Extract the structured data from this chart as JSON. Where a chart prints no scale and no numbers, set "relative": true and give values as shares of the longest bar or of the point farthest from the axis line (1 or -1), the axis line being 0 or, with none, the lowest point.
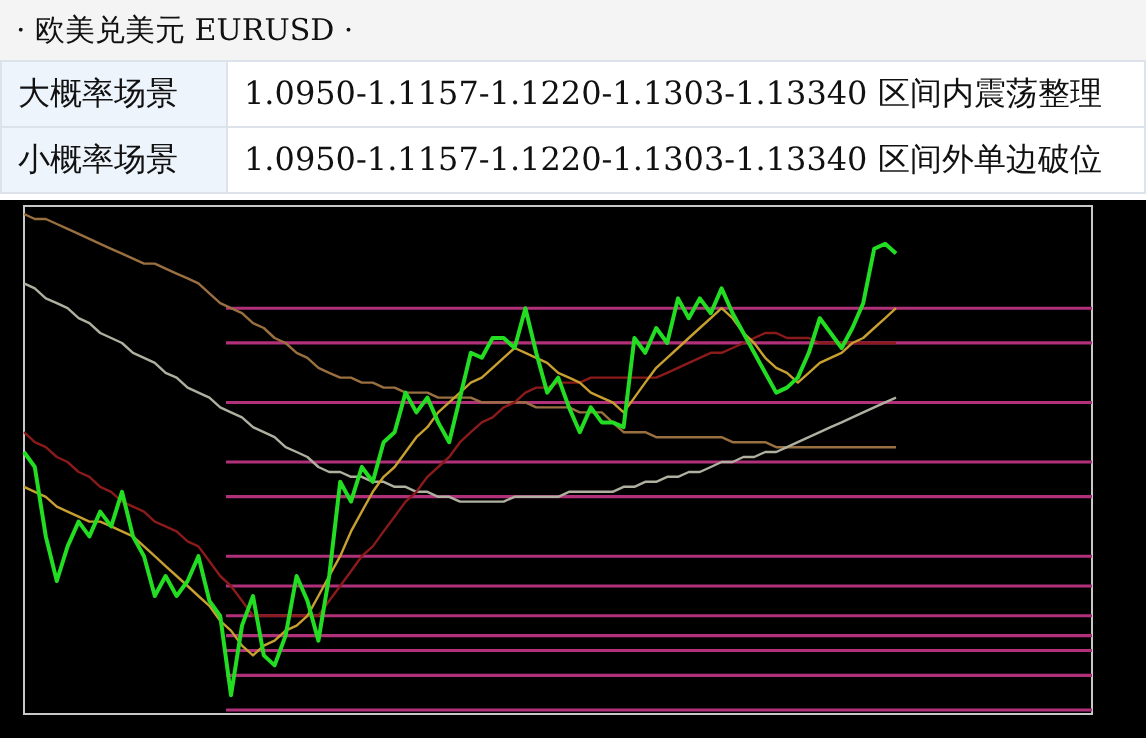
{
  "chart_data": {
    "type": "line",
    "relative": true,
    "title": "· 欧美兑美元  EURUSD ·",
    "annotations": [
      "大概率场景",
      "1.0950-1.1157-1.1220-1.1303-1.13340 区间内震荡整理",
      "小概率场景",
      "1.0950-1.1157-1.1220-1.1303-1.13340 区间外单边破位"
    ],
    "categories": [
      null,
      null,
      null,
      null,
      null,
      null,
      null,
      null,
      null,
      null,
      null,
      null,
      null,
      null,
      null,
      null,
      null,
      null,
      null,
      null,
      null,
      null,
      null,
      null,
      null,
      null,
      null,
      null,
      null,
      null,
      null,
      null,
      null,
      null,
      null,
      null,
      null,
      null,
      null,
      null,
      null,
      null,
      null,
      null,
      null,
      null,
      null,
      null,
      null,
      null,
      null,
      null,
      null,
      null,
      null,
      null,
      null,
      null,
      null,
      null,
      null,
      null,
      null,
      null,
      null,
      null,
      null,
      null,
      null,
      null,
      null,
      null,
      null,
      null,
      null,
      null,
      null,
      null,
      null,
      null,
      null
    ],
    "series": [
      {
        "color": "#22dd22",
        "values": [
          0.52,
          0.49,
          0.35,
          0.26,
          0.33,
          0.38,
          0.35,
          0.4,
          0.37,
          0.44,
          0.35,
          0.31,
          0.23,
          0.27,
          0.23,
          0.26,
          0.31,
          0.22,
          0.19,
          0.03,
          0.17,
          0.23,
          0.11,
          0.09,
          0.15,
          0.27,
          0.22,
          0.14,
          0.27,
          0.46,
          0.42,
          0.49,
          0.46,
          0.54,
          0.56,
          0.64,
          0.6,
          0.63,
          0.58,
          0.54,
          0.63,
          0.72,
          0.71,
          0.75,
          0.75,
          0.73,
          0.81,
          0.72,
          0.64,
          0.67,
          0.61,
          0.56,
          0.61,
          0.58,
          0.58,
          0.57,
          0.75,
          0.72,
          0.77,
          0.74,
          0.83,
          0.79,
          0.83,
          0.8,
          0.85,
          0.8,
          0.76,
          0.72,
          0.68,
          0.64,
          0.65,
          0.67,
          0.72,
          0.79,
          0.76,
          0.73,
          0.77,
          0.82,
          0.93,
          0.94,
          0.92
        ]
      },
      {
        "color": "#9a7040",
        "values": [
          1.0,
          0.99,
          0.99,
          0.98,
          0.97,
          0.96,
          0.95,
          0.94,
          0.93,
          0.92,
          0.91,
          0.9,
          0.9,
          0.89,
          0.88,
          0.87,
          0.86,
          0.84,
          0.82,
          0.81,
          0.8,
          0.78,
          0.77,
          0.75,
          0.74,
          0.72,
          0.71,
          0.69,
          0.68,
          0.67,
          0.67,
          0.66,
          0.66,
          0.65,
          0.65,
          0.64,
          0.64,
          0.64,
          0.63,
          0.63,
          0.63,
          0.63,
          0.62,
          0.62,
          0.62,
          0.62,
          0.62,
          0.61,
          0.61,
          0.61,
          0.61,
          0.6,
          0.6,
          0.6,
          0.58,
          0.56,
          0.56,
          0.56,
          0.55,
          0.55,
          0.55,
          0.55,
          0.55,
          0.55,
          0.55,
          0.54,
          0.54,
          0.54,
          0.54,
          0.53,
          0.53,
          0.53,
          0.53,
          0.53,
          0.53,
          0.53,
          0.53,
          0.53,
          0.53,
          0.53,
          0.53
        ]
      },
      {
        "color": "#b0b0a0",
        "values": [
          0.86,
          0.85,
          0.83,
          0.82,
          0.81,
          0.79,
          0.78,
          0.76,
          0.75,
          0.74,
          0.72,
          0.71,
          0.7,
          0.68,
          0.67,
          0.65,
          0.64,
          0.63,
          0.61,
          0.6,
          0.59,
          0.57,
          0.56,
          0.55,
          0.53,
          0.52,
          0.51,
          0.49,
          0.48,
          0.48,
          0.47,
          0.47,
          0.46,
          0.46,
          0.45,
          0.45,
          0.44,
          0.44,
          0.43,
          0.43,
          0.42,
          0.42,
          0.42,
          0.42,
          0.42,
          0.43,
          0.43,
          0.43,
          0.43,
          0.43,
          0.44,
          0.44,
          0.44,
          0.44,
          0.44,
          0.45,
          0.45,
          0.46,
          0.46,
          0.47,
          0.47,
          0.48,
          0.48,
          0.49,
          0.5,
          0.5,
          0.51,
          0.51,
          0.52,
          0.52,
          0.53,
          0.54,
          0.55,
          0.56,
          0.57,
          0.58,
          0.59,
          0.6,
          0.61,
          0.62,
          0.63
        ]
      },
      {
        "color": "#8b1a1a",
        "values": [
          0.56,
          0.54,
          0.53,
          0.51,
          0.5,
          0.48,
          0.47,
          0.45,
          0.44,
          0.42,
          0.41,
          0.4,
          0.38,
          0.37,
          0.36,
          0.34,
          0.33,
          0.3,
          0.27,
          0.25,
          0.22,
          0.19,
          0.19,
          0.19,
          0.19,
          0.19,
          0.19,
          0.19,
          0.22,
          0.25,
          0.28,
          0.31,
          0.33,
          0.36,
          0.39,
          0.42,
          0.44,
          0.47,
          0.49,
          0.51,
          0.54,
          0.56,
          0.58,
          0.59,
          0.61,
          0.62,
          0.64,
          0.65,
          0.65,
          0.66,
          0.66,
          0.66,
          0.67,
          0.67,
          0.67,
          0.67,
          0.67,
          0.67,
          0.67,
          0.68,
          0.69,
          0.7,
          0.71,
          0.72,
          0.72,
          0.73,
          0.74,
          0.75,
          0.76,
          0.76,
          0.75,
          0.75,
          0.75,
          0.74,
          0.74,
          0.74,
          0.74,
          0.74,
          0.74,
          0.74,
          0.74
        ]
      },
      {
        "color": "#c8a030",
        "values": [
          0.45,
          0.44,
          0.43,
          0.41,
          0.4,
          0.39,
          0.38,
          0.38,
          0.37,
          0.36,
          0.35,
          0.33,
          0.31,
          0.29,
          0.27,
          0.25,
          0.23,
          0.21,
          0.18,
          0.16,
          0.13,
          0.11,
          0.13,
          0.14,
          0.16,
          0.17,
          0.19,
          0.23,
          0.27,
          0.31,
          0.36,
          0.4,
          0.44,
          0.47,
          0.49,
          0.52,
          0.55,
          0.57,
          0.6,
          0.62,
          0.64,
          0.66,
          0.67,
          0.69,
          0.71,
          0.73,
          0.72,
          0.71,
          0.7,
          0.68,
          0.67,
          0.66,
          0.64,
          0.63,
          0.62,
          0.6,
          0.63,
          0.66,
          0.69,
          0.71,
          0.73,
          0.75,
          0.77,
          0.79,
          0.81,
          0.79,
          0.76,
          0.74,
          0.71,
          0.69,
          0.68,
          0.66,
          0.68,
          0.7,
          0.71,
          0.72,
          0.74,
          0.75,
          0.77,
          0.79,
          0.81
        ]
      }
    ],
    "ref_lines": [
      {
        "axis": "y",
        "value": 0.81,
        "color": "#b0307a"
      },
      {
        "axis": "y",
        "value": 0.74,
        "color": "#b0307a"
      },
      {
        "axis": "y",
        "value": 0.62,
        "color": "#b0307a"
      },
      {
        "axis": "y",
        "value": 0.5,
        "color": "#b0307a"
      },
      {
        "axis": "y",
        "value": 0.43,
        "color": "#b0307a"
      },
      {
        "axis": "y",
        "value": 0.31,
        "color": "#b0307a"
      },
      {
        "axis": "y",
        "value": 0.25,
        "color": "#b0307a"
      },
      {
        "axis": "y",
        "value": 0.19,
        "color": "#b0307a"
      },
      {
        "axis": "y",
        "value": 0.15,
        "color": "#b0307a"
      },
      {
        "axis": "y",
        "value": 0.12,
        "color": "#b0307a"
      },
      {
        "axis": "y",
        "value": 0.07,
        "color": "#b0307a"
      },
      {
        "axis": "y",
        "value": 0.0,
        "color": "#b0307a"
      }
    ],
    "grid": false
  }
}
